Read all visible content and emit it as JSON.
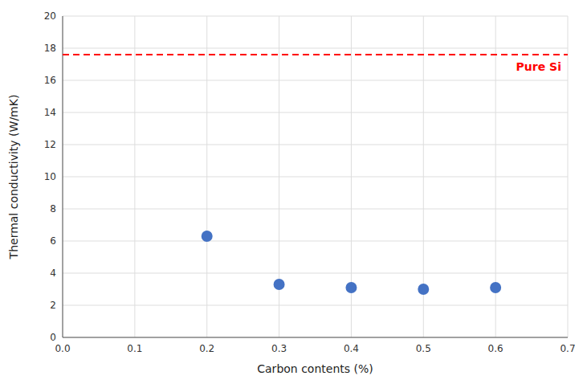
{
  "chart_data": {
    "type": "scatter",
    "x": [
      0.2,
      0.3,
      0.4,
      0.5,
      0.6
    ],
    "values": [
      6.3,
      3.3,
      3.1,
      3.0,
      3.1
    ],
    "color": "#4472C4",
    "xlabel": "Carbon contents (%)",
    "ylabel": "Thermal conductivity (W/mK)",
    "xlim": [
      0.0,
      0.7
    ],
    "ylim": [
      0,
      20
    ],
    "xticks": [
      {
        "value": 0.0,
        "label": "0.0"
      },
      0.1,
      0.2,
      0.3,
      0.4,
      0.5,
      0.6,
      0.7
    ],
    "yticks": [
      0,
      2,
      4,
      6,
      8,
      10,
      12,
      14,
      16,
      18,
      20
    ],
    "grid": true,
    "annotations": [
      {
        "text": "Pure Si",
        "y": 17.6,
        "color": "red",
        "line_style": "dashed"
      }
    ]
  }
}
